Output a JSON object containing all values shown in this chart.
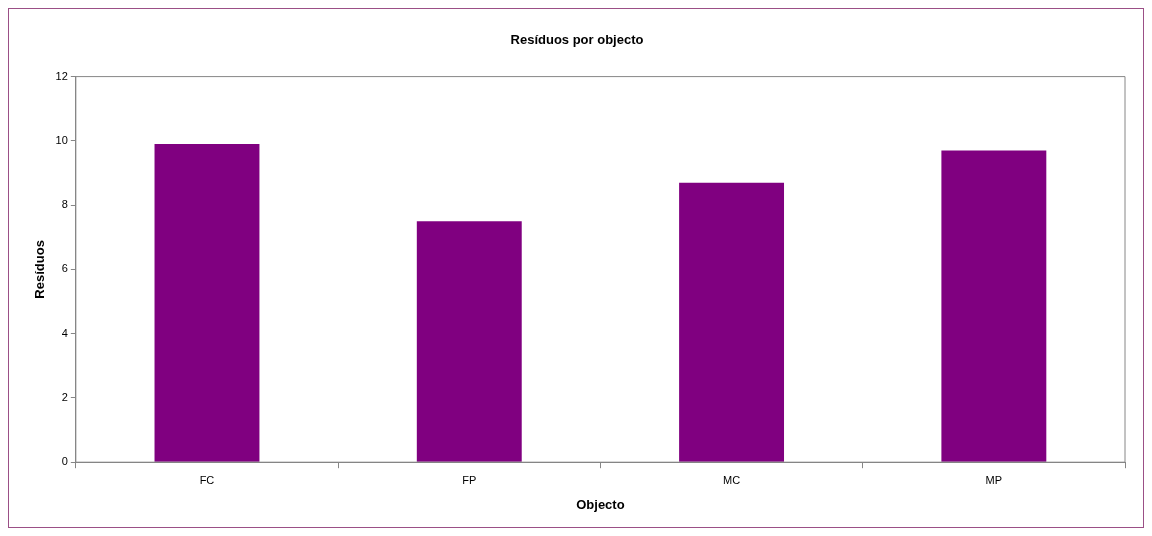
{
  "chart_data": {
    "type": "bar",
    "title": "Resíduos por objecto",
    "xlabel": "Objecto",
    "ylabel": "Resíduos",
    "categories": [
      "FC",
      "FP",
      "MC",
      "MP"
    ],
    "values": [
      9.9,
      7.5,
      8.7,
      9.7
    ],
    "color": "#800080",
    "ylim": [
      0,
      12
    ],
    "yticks": [
      0,
      2,
      4,
      6,
      8,
      10,
      12
    ],
    "grid": false,
    "legend": false
  }
}
